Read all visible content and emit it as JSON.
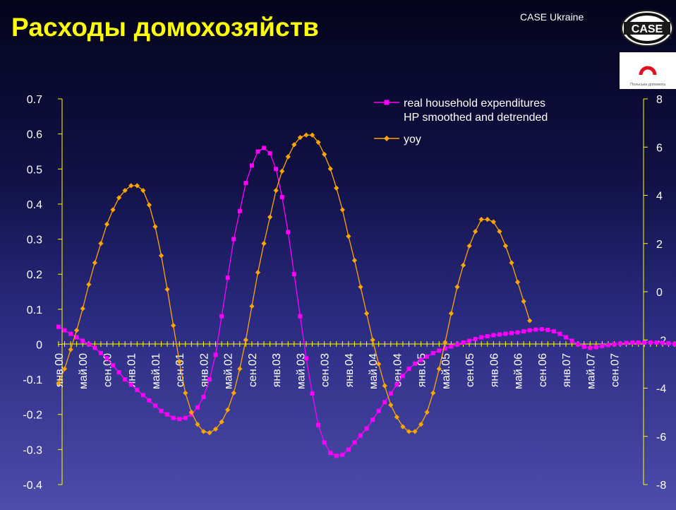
{
  "slide": {
    "title": "Расходы домохозяйств",
    "org_label": "CASE Ukraine",
    "logo_text": "CASE",
    "logo2_text": "Польська допомога"
  },
  "colors": {
    "title": "#ffff00",
    "axis": "#ffff00",
    "series_expenditures": "#ff00ff",
    "series_yoy": "#ffa500",
    "text": "#ffffff"
  },
  "chart_data": {
    "type": "line",
    "x_start": "янв.00",
    "x_end": "дек.07",
    "x_tick_labels": [
      "янв.00",
      "май.00",
      "сен.00",
      "янв.01",
      "май.01",
      "сен.01",
      "янв.02",
      "май.02",
      "сен.02",
      "янв.03",
      "май.03",
      "сен.03",
      "янв.04",
      "май.04",
      "сен.04",
      "янв.05",
      "май.05",
      "сен.05",
      "янв.06",
      "май.06",
      "сен.06",
      "янв.07",
      "май.07",
      "сен.07"
    ],
    "y_left": {
      "min": -0.4,
      "max": 0.7,
      "step": 0.1,
      "tick_labels": [
        "-0.4",
        "-0.3",
        "-0.2",
        "-0.1",
        "0",
        "0.1",
        "0.2",
        "0.3",
        "0.4",
        "0.5",
        "0.6",
        "0.7"
      ]
    },
    "y_right": {
      "min": -8,
      "max": 8,
      "step": 2,
      "tick_labels": [
        "-8",
        "-6",
        "-4",
        "-2",
        "0",
        "2",
        "4",
        "6",
        "8"
      ]
    },
    "legend_position": "top-right",
    "series": [
      {
        "name": "real household expenditures HP smoothed and detrended",
        "axis": "left",
        "marker": "square",
        "values": [
          0.05,
          0.04,
          0.03,
          0.02,
          0.01,
          0.0,
          -0.01,
          -0.025,
          -0.04,
          -0.06,
          -0.08,
          -0.1,
          -0.115,
          -0.13,
          -0.145,
          -0.16,
          -0.175,
          -0.19,
          -0.2,
          -0.21,
          -0.213,
          -0.21,
          -0.2,
          -0.18,
          -0.15,
          -0.1,
          -0.03,
          0.08,
          0.19,
          0.3,
          0.38,
          0.46,
          0.51,
          0.55,
          0.56,
          0.545,
          0.5,
          0.42,
          0.32,
          0.2,
          0.08,
          -0.04,
          -0.14,
          -0.23,
          -0.28,
          -0.31,
          -0.318,
          -0.315,
          -0.3,
          -0.28,
          -0.26,
          -0.24,
          -0.215,
          -0.19,
          -0.165,
          -0.14,
          -0.115,
          -0.09,
          -0.07,
          -0.055,
          -0.045,
          -0.035,
          -0.025,
          -0.018,
          -0.012,
          -0.006,
          0.0,
          0.005,
          0.01,
          0.015,
          0.02,
          0.023,
          0.026,
          0.028,
          0.03,
          0.032,
          0.034,
          0.037,
          0.04,
          0.042,
          0.043,
          0.041,
          0.037,
          0.03,
          0.02,
          0.01,
          0.0,
          -0.007,
          -0.01,
          -0.008,
          -0.005,
          -0.002,
          0.0,
          0.002,
          0.004,
          0.005,
          0.005,
          0.005,
          0.005,
          0.005,
          0.004,
          0.003,
          0.001,
          0.0,
          -0.002,
          -0.005
        ]
      },
      {
        "name": "yoy",
        "axis": "right",
        "marker": "diamond",
        "values": [
          -3.8,
          -3.2,
          -2.4,
          -1.6,
          -0.7,
          0.3,
          1.2,
          2.0,
          2.8,
          3.4,
          3.9,
          4.2,
          4.4,
          4.4,
          4.2,
          3.6,
          2.7,
          1.5,
          0.1,
          -1.4,
          -2.9,
          -4.2,
          -5.0,
          -5.5,
          -5.8,
          -5.85,
          -5.7,
          -5.4,
          -4.9,
          -4.2,
          -3.2,
          -2.0,
          -0.6,
          0.8,
          2.0,
          3.1,
          4.2,
          5.0,
          5.6,
          6.1,
          6.4,
          6.5,
          6.5,
          6.2,
          5.7,
          5.1,
          4.3,
          3.4,
          2.3,
          1.3,
          0.2,
          -0.9,
          -2.0,
          -3.0,
          -3.9,
          -4.7,
          -5.2,
          -5.6,
          -5.8,
          -5.8,
          -5.5,
          -5.0,
          -4.2,
          -3.2,
          -2.1,
          -0.9,
          0.2,
          1.1,
          1.9,
          2.5,
          3.0,
          3.0,
          2.9,
          2.5,
          1.9,
          1.2,
          0.4,
          -0.4,
          -1.2
        ]
      }
    ]
  }
}
